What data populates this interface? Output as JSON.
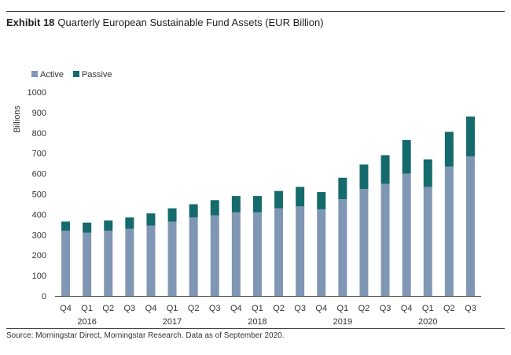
{
  "header": {
    "exhibit": "Exhibit 18",
    "title": "Quarterly European Sustainable Fund Assets (EUR Billion)"
  },
  "footer": {
    "source": "Source: Morningstar Direct, Morningstar Research. Data as of September 2020."
  },
  "colors": {
    "active": "#7f97b4",
    "passive": "#156a6c",
    "axis": "#555555"
  },
  "chart_data": {
    "type": "bar",
    "stacked": true,
    "ylabel": "Billions",
    "ylim": [
      0,
      1000
    ],
    "yticks": [
      0,
      100,
      200,
      300,
      400,
      500,
      600,
      700,
      800,
      900,
      1000
    ],
    "grid": false,
    "legend_position": "top-left",
    "categories": [
      "Q4",
      "Q1",
      "Q2",
      "Q3",
      "Q4",
      "Q1",
      "Q2",
      "Q3",
      "Q4",
      "Q1",
      "Q2",
      "Q3",
      "Q4",
      "Q1",
      "Q2",
      "Q3",
      "Q4",
      "Q1",
      "Q2",
      "Q3"
    ],
    "year_labels": [
      {
        "label": "2016",
        "index": 1
      },
      {
        "label": "2017",
        "index": 5
      },
      {
        "label": "2018",
        "index": 9
      },
      {
        "label": "2019",
        "index": 13
      },
      {
        "label": "2020",
        "index": 17
      }
    ],
    "series": [
      {
        "name": "Active",
        "values": [
          320,
          310,
          320,
          330,
          345,
          365,
          385,
          395,
          410,
          410,
          430,
          440,
          425,
          475,
          525,
          550,
          600,
          535,
          635,
          685
        ]
      },
      {
        "name": "Passive",
        "values": [
          45,
          50,
          50,
          55,
          60,
          65,
          65,
          75,
          80,
          80,
          85,
          95,
          85,
          105,
          120,
          140,
          165,
          135,
          170,
          195
        ]
      }
    ]
  }
}
